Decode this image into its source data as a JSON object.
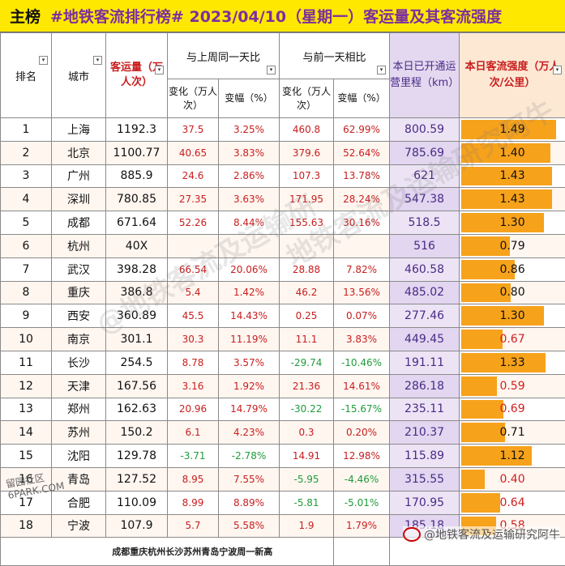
{
  "header": {
    "label": "主榜",
    "title": "#地铁客流排行榜# 2023/04/10（星期一）客运量及其客流强度"
  },
  "columns": {
    "rank": "排名",
    "city": "城市",
    "volume": "客运量（万人次）",
    "week_group": "与上周同一天比",
    "day_group": "与前一天相比",
    "change_sub": "变化（万人次）",
    "ratio_sub": "变幅（%）",
    "mileage": "本日已开通运营里程（km）",
    "intensity": "本日客流强度（万人次/公里）"
  },
  "rows": [
    {
      "rank": "1",
      "city": "上海",
      "volume": "1192.3",
      "w_chg": "37.5",
      "w_pct": "3.25%",
      "d_chg": "460.8",
      "d_pct": "62.99%",
      "mileage": "800.59",
      "intensity": "1.49",
      "intensity_value": 1.49
    },
    {
      "rank": "2",
      "city": "北京",
      "volume": "1100.77",
      "w_chg": "40.65",
      "w_pct": "3.83%",
      "d_chg": "379.6",
      "d_pct": "52.64%",
      "mileage": "785.69",
      "intensity": "1.40",
      "intensity_value": 1.4
    },
    {
      "rank": "3",
      "city": "广州",
      "volume": "885.9",
      "w_chg": "24.6",
      "w_pct": "2.86%",
      "d_chg": "107.3",
      "d_pct": "13.78%",
      "mileage": "621",
      "intensity": "1.43",
      "intensity_value": 1.43
    },
    {
      "rank": "4",
      "city": "深圳",
      "volume": "780.85",
      "w_chg": "27.35",
      "w_pct": "3.63%",
      "d_chg": "171.95",
      "d_pct": "28.24%",
      "mileage": "547.38",
      "intensity": "1.43",
      "intensity_value": 1.43
    },
    {
      "rank": "5",
      "city": "成都",
      "volume": "671.64",
      "w_chg": "52.26",
      "w_pct": "8.44%",
      "d_chg": "155.63",
      "d_pct": "30.16%",
      "mileage": "518.5",
      "intensity": "1.30",
      "intensity_value": 1.3
    },
    {
      "rank": "6",
      "city": "杭州",
      "volume": "40X",
      "w_chg": "",
      "w_pct": "",
      "d_chg": "",
      "d_pct": "",
      "mileage": "516",
      "intensity": "0.79",
      "intensity_value": 0.79
    },
    {
      "rank": "7",
      "city": "武汉",
      "volume": "398.28",
      "w_chg": "66.54",
      "w_pct": "20.06%",
      "d_chg": "28.88",
      "d_pct": "7.82%",
      "mileage": "460.58",
      "intensity": "0.86",
      "intensity_value": 0.86
    },
    {
      "rank": "8",
      "city": "重庆",
      "volume": "386.8",
      "w_chg": "5.4",
      "w_pct": "1.42%",
      "d_chg": "46.2",
      "d_pct": "13.56%",
      "mileage": "485.02",
      "intensity": "0.80",
      "intensity_value": 0.8
    },
    {
      "rank": "9",
      "city": "西安",
      "volume": "360.89",
      "w_chg": "45.5",
      "w_pct": "14.43%",
      "d_chg": "0.25",
      "d_pct": "0.07%",
      "mileage": "277.46",
      "intensity": "1.30",
      "intensity_value": 1.3
    },
    {
      "rank": "10",
      "city": "南京",
      "volume": "301.1",
      "w_chg": "30.3",
      "w_pct": "11.19%",
      "d_chg": "11.1",
      "d_pct": "3.83%",
      "mileage": "449.45",
      "intensity": "0.67",
      "intensity_value": 0.67
    },
    {
      "rank": "11",
      "city": "长沙",
      "volume": "254.5",
      "w_chg": "8.78",
      "w_pct": "3.57%",
      "d_chg": "-29.74",
      "d_pct": "-10.46%",
      "mileage": "191.11",
      "intensity": "1.33",
      "intensity_value": 1.33
    },
    {
      "rank": "12",
      "city": "天津",
      "volume": "167.56",
      "w_chg": "3.16",
      "w_pct": "1.92%",
      "d_chg": "21.36",
      "d_pct": "14.61%",
      "mileage": "286.18",
      "intensity": "0.59",
      "intensity_value": 0.59
    },
    {
      "rank": "13",
      "city": "郑州",
      "volume": "162.63",
      "w_chg": "20.96",
      "w_pct": "14.79%",
      "d_chg": "-30.22",
      "d_pct": "-15.67%",
      "mileage": "235.11",
      "intensity": "0.69",
      "intensity_value": 0.69
    },
    {
      "rank": "14",
      "city": "苏州",
      "volume": "150.2",
      "w_chg": "6.1",
      "w_pct": "4.23%",
      "d_chg": "0.3",
      "d_pct": "0.20%",
      "mileage": "210.37",
      "intensity": "0.71",
      "intensity_value": 0.71
    },
    {
      "rank": "15",
      "city": "沈阳",
      "volume": "129.78",
      "w_chg": "-3.71",
      "w_pct": "-2.78%",
      "d_chg": "14.91",
      "d_pct": "12.98%",
      "mileage": "115.89",
      "intensity": "1.12",
      "intensity_value": 1.12
    },
    {
      "rank": "16",
      "city": "青岛",
      "volume": "127.52",
      "w_chg": "8.95",
      "w_pct": "7.55%",
      "d_chg": "-5.95",
      "d_pct": "-4.46%",
      "mileage": "315.55",
      "intensity": "0.40",
      "intensity_value": 0.4
    },
    {
      "rank": "17",
      "city": "合肥",
      "volume": "110.09",
      "w_chg": "8.99",
      "w_pct": "8.89%",
      "d_chg": "-5.81",
      "d_pct": "-5.01%",
      "mileage": "170.95",
      "intensity": "0.64",
      "intensity_value": 0.64
    },
    {
      "rank": "18",
      "city": "宁波",
      "volume": "107.9",
      "w_chg": "5.7",
      "w_pct": "5.58%",
      "d_chg": "1.9",
      "d_pct": "1.79%",
      "mileage": "185.18",
      "intensity": "0.58",
      "intensity_value": 0.58
    }
  ],
  "footer_note": "成都重庆杭州长沙苏州青岛宁波周一新高",
  "watermarks": {
    "center1": "@地铁客流及运输研",
    "center2": "地铁客流及运输研究阿牛",
    "corner_line1": "留园社区",
    "corner_line2": "6PARK.COM",
    "weibo": "@地铁客流及运输研究阿牛"
  },
  "intensity_max": 1.6,
  "colors": {
    "title_bg": "#ffe800",
    "bar": "#f7a21b",
    "red": "#c81e1e",
    "green": "#1f9c3a",
    "purple": "#4a2a86"
  }
}
